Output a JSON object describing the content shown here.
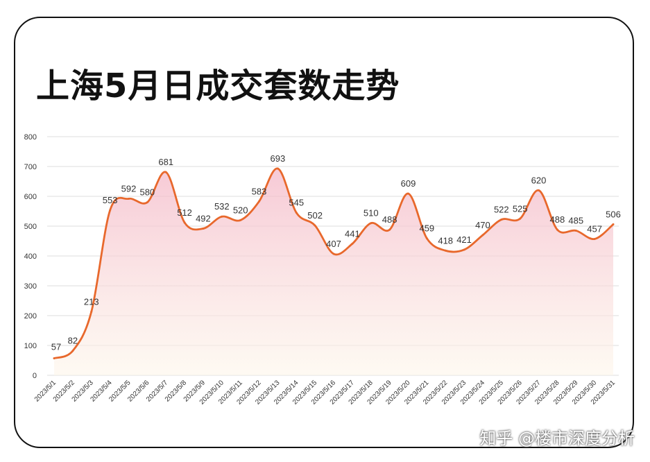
{
  "title": "上海5月日成交套数走势",
  "watermark": "知乎 @楼市深度分析",
  "colors": {
    "line": "#e8682c",
    "fill_top": "#f4b8c8",
    "fill_bottom": "#fdf6ea",
    "grid": "#dcdcdc",
    "text": "#333333"
  },
  "chart_data": {
    "type": "area",
    "title": "上海5月日成交套数走势",
    "xlabel": "",
    "ylabel": "",
    "ylim": [
      0,
      800
    ],
    "yticks": [
      0,
      100,
      200,
      300,
      400,
      500,
      600,
      700,
      800
    ],
    "grid": true,
    "categories": [
      "2023/5/1",
      "2023/5/2",
      "2023/5/3",
      "2023/5/4",
      "2023/5/5",
      "2023/5/6",
      "2023/5/7",
      "2023/5/8",
      "2023/5/9",
      "2023/5/10",
      "2023/5/11",
      "2023/5/12",
      "2023/5/13",
      "2023/5/14",
      "2023/5/15",
      "2023/5/16",
      "2023/5/17",
      "2023/5/18",
      "2023/5/19",
      "2023/5/20",
      "2023/5/21",
      "2023/5/22",
      "2023/5/23",
      "2023/5/24",
      "2023/5/25",
      "2023/5/26",
      "2023/5/27",
      "2023/5/28",
      "2023/5/29",
      "2023/5/30",
      "2023/5/31"
    ],
    "values": [
      57,
      82,
      213,
      553,
      592,
      580,
      681,
      512,
      492,
      532,
      520,
      583,
      693,
      545,
      502,
      407,
      441,
      510,
      488,
      609,
      459,
      418,
      421,
      470,
      522,
      525,
      620,
      488,
      485,
      457,
      506
    ]
  }
}
